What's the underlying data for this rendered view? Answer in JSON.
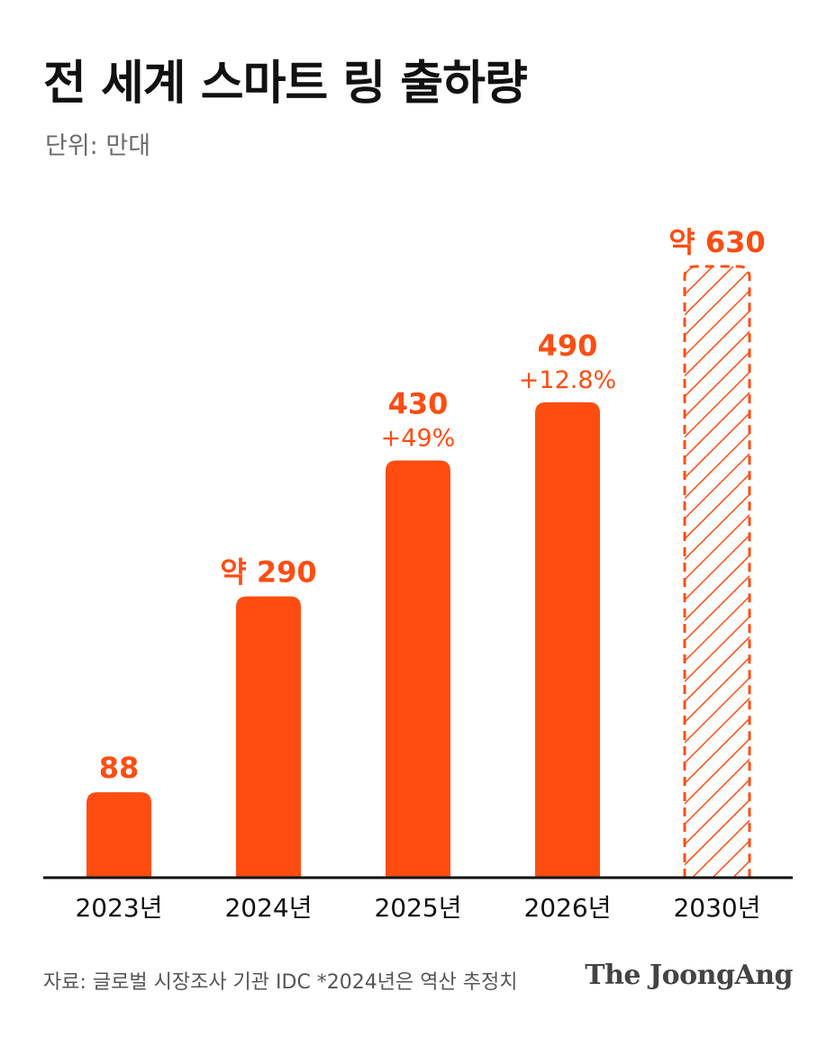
{
  "title": "전 세계 스마트 링 출하량",
  "unit_label": "단위: 만대",
  "source": "자료: 글로벌 시장조사 기관 IDC *2024년은 역산 추정치",
  "brand": "The JoongAng",
  "colors": {
    "bar": "#ff4d12",
    "text": "#111111",
    "muted": "#6b6b6b",
    "axis": "#111111"
  },
  "chart_data": {
    "type": "bar",
    "categories": [
      "2023년",
      "2024년",
      "2025년",
      "2026년",
      "2030년"
    ],
    "values": [
      88,
      290,
      430,
      490,
      630
    ],
    "value_labels": [
      "88",
      "약 290",
      "430",
      "490",
      "약 630"
    ],
    "growth_labels": [
      "",
      "",
      "+49%",
      "+12.8%",
      ""
    ],
    "projected": [
      false,
      false,
      false,
      false,
      true
    ],
    "title": "전 세계 스마트 링 출하량",
    "ylabel": "",
    "ylim": [
      0,
      630
    ],
    "grid": false
  }
}
